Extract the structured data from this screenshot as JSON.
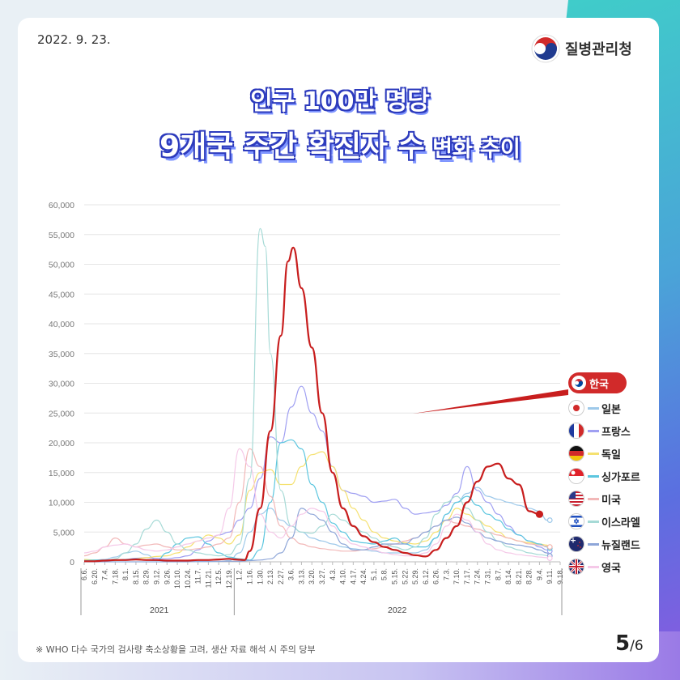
{
  "date": "2022. 9. 23.",
  "logo_text": "질병관리청",
  "title_line1": "인구 100만 명당",
  "title_line2_main": "9개국 주간 확진자 수",
  "title_line2_sub": " 변화 추이",
  "footnote": "※ WHO 다수 국가의 검사량 축소상황을 고려, 생산 자료 해석 시 주의 당부",
  "page_current": "5",
  "page_total": "/6",
  "chart_data": {
    "type": "line",
    "yticks": [
      "60,000",
      "55,000",
      "50,000",
      "45,000",
      "40,000",
      "35,000",
      "30,000",
      "25,000",
      "20,000",
      "15,000",
      "10,000",
      "5,000",
      "0"
    ],
    "ylim": [
      0,
      60000
    ],
    "x_labels": [
      "6.6.",
      "6.20.",
      "7.4.",
      "7.18.",
      "8.1.",
      "8.15.",
      "8.29.",
      "9.12.",
      "9.26.",
      "10.10.",
      "10.24.",
      "11.7.",
      "11.21.",
      "12.5.",
      "12.19.",
      "1.2.",
      "1.16.",
      "1.30.",
      "2.13.",
      "2.27.",
      "3.6.",
      "3.13.",
      "3.20.",
      "3.27.",
      "4.3.",
      "4.10.",
      "4.17.",
      "4.24.",
      "5.1.",
      "5.8.",
      "5.15.",
      "5.22.",
      "5.29.",
      "6.12.",
      "6.26.",
      "7.3.",
      "7.10.",
      "7.17.",
      "7.24.",
      "7.31.",
      "8.7.",
      "8.14.",
      "8.21.",
      "8.28.",
      "9.4.",
      "9.11.",
      "9.18."
    ],
    "years": [
      "2021",
      "2022"
    ],
    "series": [
      {
        "name": "한국",
        "color": "#c81e1e",
        "width": 2.2,
        "values": [
          100,
          100,
          200,
          300,
          300,
          400,
          300,
          300,
          200,
          200,
          200,
          300,
          300,
          400,
          500,
          400,
          350,
          300,
          1800,
          9000,
          22000,
          38000,
          50500,
          52800,
          46000,
          36000,
          25000,
          15000,
          9000,
          6000,
          4300,
          3300,
          2500,
          2000,
          1500,
          1100,
          900,
          2000,
          4000,
          6000,
          10000,
          13500,
          16000,
          16500,
          14000,
          13000,
          8500,
          8000
        ],
        "x_idx": [
          0,
          1,
          2,
          3,
          4,
          5,
          6,
          7,
          8,
          9,
          10,
          11,
          12,
          13,
          14,
          14.6,
          15,
          15.5,
          16,
          17,
          18,
          19,
          19.7,
          20.2,
          21,
          22,
          23,
          24,
          25,
          26,
          27,
          28,
          29,
          30,
          31,
          32,
          33,
          34,
          35,
          36,
          37,
          38,
          39,
          40,
          41,
          42,
          43,
          44
        ]
      },
      {
        "name": "일본",
        "color": "#9ec9ea",
        "width": 1.2,
        "values": [
          300,
          300,
          400,
          800,
          1500,
          1800,
          1200,
          300,
          100,
          50,
          50,
          50,
          50,
          50,
          200,
          1500,
          5000,
          8000,
          9000,
          7000,
          6000,
          5000,
          4000,
          3500,
          3000,
          2500,
          2200,
          2000,
          1800,
          1500,
          1500,
          1500,
          1500,
          2000,
          4000,
          8000,
          10000,
          11500,
          12500,
          11000,
          10500,
          10000,
          9500,
          9000,
          8500,
          7000,
          7000
        ],
        "x_idx": [
          0,
          1,
          2,
          3,
          4,
          5,
          6,
          7,
          8,
          9,
          10,
          11,
          12,
          13,
          14,
          15,
          16,
          17,
          18,
          19,
          20,
          21,
          22,
          23,
          24,
          25,
          26,
          27,
          28,
          29,
          30,
          31,
          32,
          33,
          34,
          35,
          36,
          37,
          38,
          39,
          40,
          41,
          42,
          43,
          44,
          44.7,
          45
        ]
      },
      {
        "name": "프랑스",
        "color": "#9f9ff2",
        "width": 1.2,
        "values": [
          300,
          200,
          150,
          200,
          400,
          600,
          700,
          600,
          500,
          700,
          1000,
          2000,
          3500,
          4500,
          5000,
          7000,
          9000,
          14000,
          21000,
          20000,
          26000,
          29500,
          25000,
          22000,
          16000,
          12000,
          11500,
          11000,
          10000,
          10200,
          10500,
          9000,
          8000,
          8200,
          8500,
          9500,
          11500,
          16000,
          12000,
          10000,
          8000,
          6000,
          4500,
          3500,
          2500,
          2000,
          1800
        ],
        "x_idx": [
          0,
          1,
          2,
          3,
          4,
          5,
          6,
          7,
          8,
          9,
          10,
          11,
          12,
          13,
          14,
          15,
          16,
          17,
          18,
          19,
          20,
          21,
          22,
          23,
          24,
          25,
          26,
          27,
          28,
          29,
          30,
          31,
          32,
          33,
          34,
          35,
          36,
          37,
          38,
          39,
          40,
          41,
          42,
          43,
          44,
          44.7,
          45
        ]
      },
      {
        "name": "독일",
        "color": "#f5e170",
        "width": 1.2,
        "values": [
          400,
          300,
          200,
          200,
          300,
          500,
          700,
          900,
          1000,
          1500,
          2500,
          3500,
          4500,
          4000,
          3000,
          4500,
          12000,
          15000,
          15500,
          13000,
          13000,
          16000,
          18000,
          18500,
          16000,
          12000,
          9000,
          7000,
          5000,
          4000,
          3500,
          3200,
          3000,
          3500,
          5000,
          7000,
          9000,
          8000,
          7000,
          6000,
          5000,
          4000,
          3500,
          3200,
          3000,
          2800,
          2500
        ],
        "x_idx": [
          0,
          1,
          2,
          3,
          4,
          5,
          6,
          7,
          8,
          9,
          10,
          11,
          12,
          13,
          14,
          15,
          16,
          17,
          18,
          19,
          20,
          21,
          22,
          23,
          24,
          25,
          26,
          27,
          28,
          29,
          30,
          31,
          32,
          33,
          34,
          35,
          36,
          37,
          38,
          39,
          40,
          41,
          42,
          43,
          44,
          44.7,
          45
        ]
      },
      {
        "name": "싱가포르",
        "color": "#5cc6df",
        "width": 1.2,
        "values": [
          200,
          300,
          300,
          300,
          400,
          500,
          300,
          200,
          1500,
          3000,
          4000,
          4200,
          3000,
          1500,
          800,
          500,
          300,
          2000,
          10000,
          20000,
          20500,
          19000,
          13000,
          10000,
          6500,
          5000,
          3500,
          3200,
          3000,
          3500,
          4000,
          3000,
          2500,
          2500,
          4000,
          8000,
          10000,
          11000,
          9500,
          8000,
          7000,
          5500,
          4500,
          3500,
          3000,
          2500,
          2300
        ],
        "x_idx": [
          0,
          1,
          2,
          3,
          4,
          5,
          6,
          7,
          8,
          9,
          10,
          11,
          12,
          13,
          14,
          15,
          16,
          17,
          18,
          19,
          20,
          21,
          22,
          23,
          24,
          25,
          26,
          27,
          28,
          29,
          30,
          31,
          32,
          33,
          34,
          35,
          36,
          37,
          38,
          39,
          40,
          41,
          42,
          43,
          44,
          44.7,
          45
        ]
      },
      {
        "name": "미국",
        "color": "#f2b8b8",
        "width": 1.2,
        "values": [
          1000,
          1500,
          2500,
          4000,
          3000,
          2500,
          2800,
          3000,
          2500,
          2000,
          2000,
          2200,
          2500,
          3000,
          4000,
          10000,
          19000,
          16000,
          11000,
          6000,
          4000,
          3000,
          2500,
          2200,
          2000,
          1800,
          1800,
          2000,
          2200,
          2500,
          3000,
          3500,
          4000,
          5000,
          6000,
          7000,
          6500,
          6000,
          5500,
          5000,
          4500,
          4000,
          3500,
          3000,
          2800,
          2600,
          2500
        ],
        "x_idx": [
          0,
          1,
          2,
          3,
          4,
          5,
          6,
          7,
          8,
          9,
          10,
          11,
          12,
          13,
          14,
          15,
          16,
          17,
          18,
          19,
          20,
          21,
          22,
          23,
          24,
          25,
          26,
          27,
          28,
          29,
          30,
          31,
          32,
          33,
          34,
          35,
          36,
          37,
          38,
          39,
          40,
          41,
          42,
          43,
          44,
          44.7,
          45
        ]
      },
      {
        "name": "이스라엘",
        "color": "#a6dad6",
        "width": 1.2,
        "values": [
          100,
          100,
          100,
          500,
          1500,
          3000,
          5500,
          7000,
          5000,
          3000,
          2000,
          1500,
          1200,
          1000,
          1200,
          3000,
          14000,
          56000,
          53000,
          35000,
          12000,
          6000,
          5000,
          4800,
          6000,
          8000,
          7000,
          6000,
          5000,
          4000,
          3000,
          2500,
          2000,
          2500,
          4000,
          8000,
          10000,
          11000,
          9000,
          7000,
          5000,
          3500,
          2500,
          2000,
          1500,
          1200,
          1000
        ],
        "x_idx": [
          0,
          1,
          2,
          3,
          4,
          5,
          6,
          7,
          8,
          9,
          10,
          11,
          12,
          13,
          14,
          15,
          16,
          17,
          17.5,
          18,
          19,
          20,
          21,
          22,
          23,
          24,
          25,
          26,
          27,
          28,
          29,
          30,
          31,
          32,
          33,
          34,
          35,
          36,
          37,
          38,
          39,
          40,
          41,
          42,
          43,
          44,
          45
        ]
      },
      {
        "name": "뉴질랜드",
        "color": "#8ea6d8",
        "width": 1.2,
        "values": [
          0,
          0,
          0,
          0,
          0,
          0,
          0,
          0,
          0,
          0,
          0,
          50,
          50,
          100,
          100,
          100,
          200,
          300,
          500,
          1500,
          4000,
          9000,
          8000,
          7000,
          5000,
          3000,
          2000,
          2000,
          2500,
          3000,
          3000,
          3000,
          4000,
          5000,
          6000,
          7000,
          7500,
          6500,
          5000,
          4000,
          3500,
          3000,
          2800,
          2500,
          2000,
          1500,
          1000
        ],
        "x_idx": [
          0,
          1,
          2,
          3,
          4,
          5,
          6,
          7,
          8,
          9,
          10,
          11,
          12,
          13,
          14,
          15,
          16,
          17,
          18,
          19,
          20,
          21,
          22,
          23,
          24,
          25,
          26,
          27,
          28,
          29,
          30,
          31,
          32,
          33,
          34,
          35,
          36,
          37,
          38,
          39,
          40,
          41,
          42,
          43,
          44,
          44.7,
          45
        ]
      },
      {
        "name": "영국",
        "color": "#f5c9e8",
        "width": 1.2,
        "values": [
          1500,
          1800,
          2500,
          2800,
          3000,
          2500,
          2000,
          1800,
          2000,
          2500,
          3000,
          3500,
          4000,
          4500,
          9000,
          19000,
          16000,
          8000,
          5000,
          4000,
          6000,
          8000,
          9000,
          8500,
          6000,
          4000,
          3000,
          2500,
          2000,
          1500,
          1200,
          1000,
          1000,
          1500,
          3000,
          6000,
          8000,
          7000,
          5000,
          3000,
          2000,
          1500,
          1200,
          1000,
          800,
          700,
          600
        ],
        "x_idx": [
          0,
          1,
          2,
          3,
          4,
          5,
          6,
          7,
          8,
          9,
          10,
          11,
          12,
          13,
          14,
          15,
          16,
          17,
          18,
          19,
          20,
          21,
          22,
          23,
          24,
          25,
          26,
          27,
          28,
          29,
          30,
          31,
          32,
          33,
          34,
          35,
          36,
          37,
          38,
          39,
          40,
          41,
          42,
          43,
          44,
          44.7,
          45
        ]
      }
    ]
  }
}
